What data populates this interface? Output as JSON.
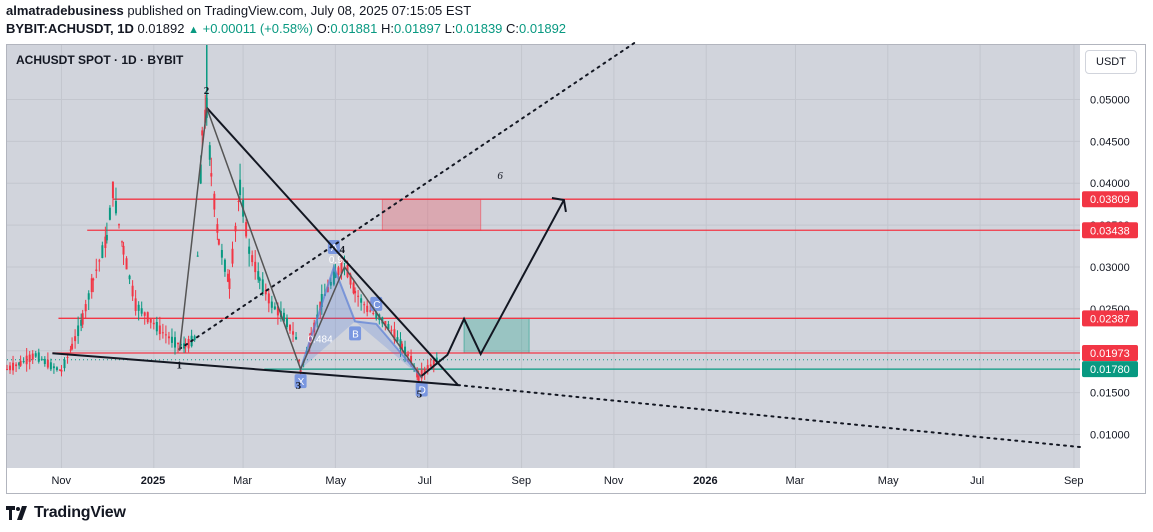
{
  "header": {
    "author": "almatradebusiness",
    "published_text": "published on TradingView.com, July 08, 2025 07:15:05 EST",
    "symbol": "BYBIT:ACHUSDT, 1D",
    "price": "0.01892",
    "change": "+0.00011 (+0.58%)",
    "open_label": "O:",
    "open": "0.01881",
    "high_label": "H:",
    "high": "0.01897",
    "low_label": "L:",
    "low": "0.01839",
    "close_label": "C:",
    "close": "0.01892"
  },
  "chart_title": "ACHUSDT SPOT · 1D · BYBIT",
  "currency_button": "USDT",
  "footer": {
    "brand": "TradingView"
  },
  "colors": {
    "up": "#089981",
    "down": "#f23645",
    "bg": "#d1d4dc",
    "level_red": "#f23645",
    "level_green": "#089981",
    "pattern": "#5b7fd6"
  },
  "chart_data": {
    "type": "line",
    "x_axis": {
      "tick_labels": [
        "Nov",
        "2025",
        "Mar",
        "May",
        "Jul",
        "Sep",
        "Nov",
        "2026",
        "Mar",
        "May",
        "Jul",
        "Sep"
      ],
      "tick_dates": [
        "2024-11-01",
        "2025-01-01",
        "2025-03-01",
        "2025-05-01",
        "2025-07-01",
        "2025-09-01",
        "2025-11-01",
        "2026-01-01",
        "2026-03-01",
        "2026-05-01",
        "2026-07-01",
        "2026-09-01"
      ],
      "range": [
        "2024-09-26",
        "2026-09-05"
      ]
    },
    "y_axis": {
      "tick_labels": [
        "0.05000",
        "0.04500",
        "0.04000",
        "0.03500",
        "0.03000",
        "0.02500",
        "0.02000",
        "0.01500",
        "0.01000"
      ],
      "range": [
        0.006,
        0.0565
      ],
      "position": "right"
    },
    "price_series": {
      "name": "ACHUSDT",
      "points": [
        [
          "2024-09-26",
          0.0178
        ],
        [
          "2024-10-05",
          0.0185
        ],
        [
          "2024-10-15",
          0.0195
        ],
        [
          "2024-10-25",
          0.0182
        ],
        [
          "2024-11-01",
          0.0176
        ],
        [
          "2024-11-08",
          0.0205
        ],
        [
          "2024-11-15",
          0.0238
        ],
        [
          "2024-11-22",
          0.0285
        ],
        [
          "2024-12-01",
          0.0335
        ],
        [
          "2024-12-05",
          0.0392
        ],
        [
          "2024-12-12",
          0.032
        ],
        [
          "2024-12-20",
          0.0255
        ],
        [
          "2024-12-28",
          0.024
        ],
        [
          "2025-01-05",
          0.0225
        ],
        [
          "2025-01-15",
          0.021
        ],
        [
          "2025-01-22",
          0.0205
        ],
        [
          "2025-01-28",
          0.0215
        ],
        [
          "2025-02-02",
          0.046
        ],
        [
          "2025-02-05",
          0.049
        ],
        [
          "2025-02-08",
          0.041
        ],
        [
          "2025-02-13",
          0.033
        ],
        [
          "2025-02-20",
          0.028
        ],
        [
          "2025-02-27",
          0.0395
        ],
        [
          "2025-03-05",
          0.032
        ],
        [
          "2025-03-12",
          0.0285
        ],
        [
          "2025-03-20",
          0.0255
        ],
        [
          "2025-03-28",
          0.024
        ],
        [
          "2025-04-05",
          0.0215
        ],
        [
          "2025-04-08",
          0.0175
        ],
        [
          "2025-04-15",
          0.0215
        ],
        [
          "2025-04-22",
          0.026
        ],
        [
          "2025-05-01",
          0.029
        ],
        [
          "2025-05-07",
          0.0305
        ],
        [
          "2025-05-14",
          0.027
        ],
        [
          "2025-05-22",
          0.025
        ],
        [
          "2025-05-30",
          0.024
        ],
        [
          "2025-06-07",
          0.0225
        ],
        [
          "2025-06-14",
          0.0205
        ],
        [
          "2025-06-20",
          0.019
        ],
        [
          "2025-06-25",
          0.0168
        ],
        [
          "2025-07-01",
          0.018
        ],
        [
          "2025-07-08",
          0.0189
        ]
      ]
    },
    "horizontal_levels": [
      {
        "value": 0.03809,
        "label": "0.03809",
        "color": "#f23645",
        "from": "2024-12-05"
      },
      {
        "value": 0.03438,
        "label": "0.03438",
        "color": "#f23645",
        "from": "2024-11-18"
      },
      {
        "value": 0.02387,
        "label": "0.02387",
        "color": "#f23645",
        "from": "2024-10-30"
      },
      {
        "value": 0.01973,
        "label": "0.01973",
        "color": "#f23645",
        "from": "2024-10-26"
      },
      {
        "value": 0.0178,
        "label": "0.01780",
        "color": "#089981",
        "from": "2025-03-15"
      }
    ],
    "zones": [
      {
        "kind": "target",
        "from": "2025-06-01",
        "to": "2025-08-05",
        "low": 0.03438,
        "high": 0.03809,
        "color": "#f23645"
      },
      {
        "kind": "entry",
        "from": "2025-07-25",
        "to": "2025-09-06",
        "low": 0.01973,
        "high": 0.02387,
        "color": "#089981"
      }
    ],
    "trendlines": [
      {
        "style": "solid",
        "points": [
          [
            "2024-10-26",
            0.0197
          ],
          [
            "2025-07-21",
            0.0159
          ]
        ]
      },
      {
        "style": "solid",
        "points": [
          [
            "2025-02-05",
            0.049
          ],
          [
            "2025-07-21",
            0.0159
          ]
        ]
      },
      {
        "style": "dotted",
        "points": [
          [
            "2025-07-21",
            0.0159
          ],
          [
            "2026-09-05",
            0.0085
          ]
        ]
      },
      {
        "style": "dotted",
        "points": [
          [
            "2025-01-18",
            0.0202
          ],
          [
            "2025-11-15",
            0.0568
          ]
        ]
      }
    ],
    "wave_path": {
      "points": [
        [
          "2025-01-18",
          0.02
        ],
        [
          "2025-02-05",
          0.049
        ],
        [
          "2025-04-08",
          0.0178
        ],
        [
          "2025-05-07",
          0.03
        ],
        [
          "2025-06-27",
          0.0168
        ]
      ],
      "labels": [
        "1",
        "2",
        "3",
        "4",
        "5"
      ]
    },
    "projection_path": {
      "points": [
        [
          "2025-06-27",
          0.017
        ],
        [
          "2025-07-14",
          0.0195
        ],
        [
          "2025-07-25",
          0.0238
        ],
        [
          "2025-08-05",
          0.0196
        ],
        [
          "2025-09-29",
          0.038
        ]
      ],
      "label": "6"
    },
    "harmonic_pattern": {
      "points": [
        [
          "2025-04-08",
          0.0178
        ],
        [
          "2025-04-30",
          0.03
        ],
        [
          "2025-05-14",
          0.0235
        ],
        [
          "2025-05-28",
          0.0232
        ],
        [
          "2025-06-27",
          0.0168
        ]
      ],
      "labels": [
        "X",
        "A",
        "B",
        "C",
        "D"
      ],
      "ratios": [
        "0.484",
        "0.9..."
      ]
    }
  }
}
